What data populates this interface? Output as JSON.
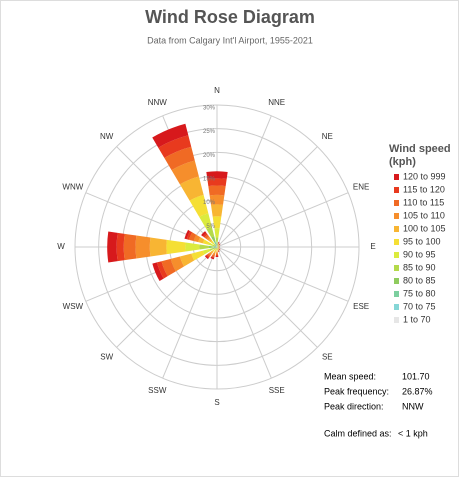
{
  "chart_data": {
    "type": "windrose",
    "title": "Wind Rose Diagram",
    "subtitle": "Data from Calgary Int'l Airport, 1955-2021",
    "legend_title": "Wind speed (kph)",
    "categories": [
      "N",
      "NNE",
      "NE",
      "ENE",
      "E",
      "ESE",
      "SE",
      "SSE",
      "S",
      "SSW",
      "SW",
      "WSW",
      "W",
      "WNW",
      "NW",
      "NNW"
    ],
    "ylim": [
      0,
      30
    ],
    "yticks": [
      {
        "value": 5,
        "label": "5%"
      },
      {
        "value": 10,
        "label": "10%"
      },
      {
        "value": 15,
        "label": "15%"
      },
      {
        "value": 20,
        "label": "20%"
      },
      {
        "value": 25,
        "label": "25%"
      },
      {
        "value": 30,
        "label": "30%"
      }
    ],
    "series": [
      {
        "name": "120 to 999",
        "color": "#d7191c",
        "values": [
          1.5,
          0.1,
          0.1,
          0,
          0,
          0,
          0.1,
          0.1,
          0.2,
          0.3,
          0.3,
          1,
          2,
          0.5,
          0.5,
          2.5
        ]
      },
      {
        "name": "115 to 120",
        "color": "#e83a1e",
        "values": [
          1.5,
          0.1,
          0.1,
          0,
          0,
          0,
          0.1,
          0.1,
          0.2,
          0.2,
          0.3,
          1,
          1.5,
          0.5,
          0.4,
          2.5
        ]
      },
      {
        "name": "110 to 115",
        "color": "#f06a24",
        "values": [
          2,
          0.1,
          0.1,
          0.1,
          0.1,
          0.1,
          0.1,
          0.1,
          0.3,
          0.4,
          0.4,
          2,
          2.5,
          1,
          0.5,
          3
        ]
      },
      {
        "name": "105 to 110",
        "color": "#f68e2c",
        "values": [
          2,
          0.1,
          0.1,
          0.1,
          0.1,
          0.1,
          0.1,
          0.1,
          0.3,
          0.4,
          0.4,
          2,
          3,
          1,
          0.5,
          3.5
        ]
      },
      {
        "name": "100 to 105",
        "color": "#f8b533",
        "values": [
          2.5,
          0.2,
          0.1,
          0.1,
          0.1,
          0.1,
          0.1,
          0.2,
          0.3,
          0.4,
          0.5,
          2.5,
          3.5,
          1,
          0.6,
          4
        ]
      },
      {
        "name": "95 to 100",
        "color": "#f5df35",
        "values": [
          2.5,
          0.2,
          0.1,
          0.1,
          0.1,
          0.1,
          0.1,
          0.2,
          0.3,
          0.4,
          0.5,
          2.5,
          4,
          1.2,
          0.6,
          4
        ]
      },
      {
        "name": "90 to 95",
        "color": "#dbeb3e",
        "values": [
          2,
          0.1,
          0.1,
          0.1,
          0.1,
          0.1,
          0.1,
          0.1,
          0.2,
          0.2,
          0.3,
          1.5,
          3,
          1,
          0.4,
          3
        ]
      },
      {
        "name": "85 to 90",
        "color": "#b4da4a",
        "values": [
          1,
          0.1,
          0.1,
          0,
          0,
          0,
          0.1,
          0.1,
          0.1,
          0.1,
          0.2,
          0.8,
          2,
          0.4,
          0.3,
          2
        ]
      },
      {
        "name": "80 to 85",
        "color": "#8fcb5e",
        "values": [
          0.5,
          0,
          0,
          0,
          0,
          0,
          0,
          0,
          0.1,
          0.1,
          0.1,
          0.4,
          1,
          0.2,
          0.2,
          1.2
        ]
      },
      {
        "name": "75 to 80",
        "color": "#7ccf9f",
        "values": [
          0.3,
          0,
          0,
          0,
          0,
          0,
          0,
          0,
          0,
          0.1,
          0.1,
          0.2,
          0.3,
          0.1,
          0.1,
          0.6
        ]
      },
      {
        "name": "70 to 75",
        "color": "#85d6d6",
        "values": [
          0.1,
          0,
          0,
          0,
          0,
          0,
          0,
          0,
          0,
          0,
          0,
          0.1,
          0.2,
          0.1,
          0,
          0.3
        ]
      },
      {
        "name": "1 to 70",
        "color": "#e6e6e6",
        "values": [
          0.1,
          0.1,
          0.1,
          0.1,
          0.1,
          0.1,
          0.1,
          0.1,
          0.1,
          0.1,
          0.1,
          0.1,
          0.2,
          0.1,
          0.1,
          0.27
        ]
      }
    ],
    "annotations": [
      {
        "label": "Mean speed:",
        "value": "101.70"
      },
      {
        "label": "Peak frequency:",
        "value": "26.87%"
      },
      {
        "label": "Peak direction:",
        "value": "NNW"
      },
      {
        "label": "Calm defined as:",
        "value": "< 1 kph"
      }
    ]
  }
}
